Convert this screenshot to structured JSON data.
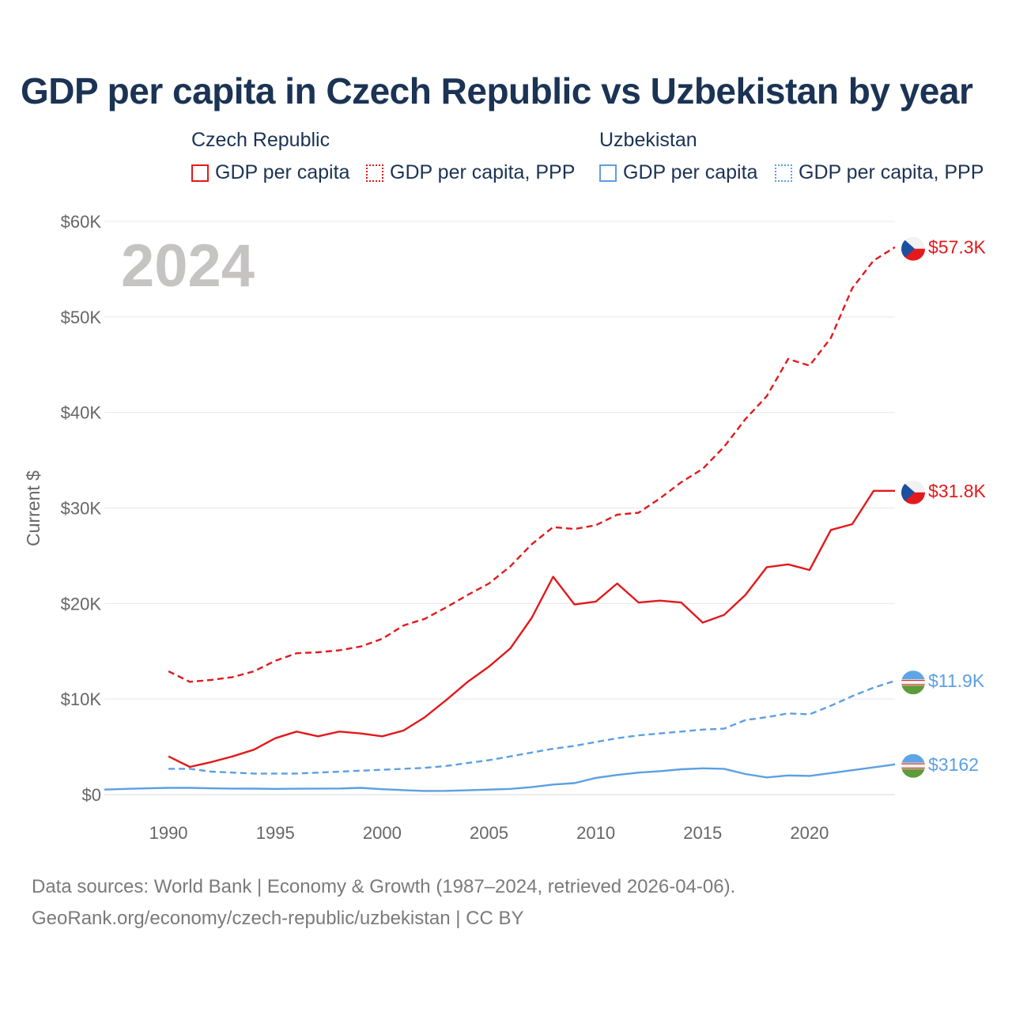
{
  "chart_data": {
    "type": "line",
    "title": "GDP per capita in Czech Republic vs Uzbekistan by year",
    "ylabel": "Current $",
    "xlabel": "",
    "xlim": [
      1987,
      2024
    ],
    "ylim": [
      0,
      60000
    ],
    "x_ticks": [
      1990,
      1995,
      2000,
      2005,
      2010,
      2015,
      2020
    ],
    "x_tick_labels": [
      "1990",
      "1995",
      "2000",
      "2005",
      "2010",
      "2015",
      "2020"
    ],
    "y_ticks": [
      0,
      10000,
      20000,
      30000,
      40000,
      50000,
      60000
    ],
    "y_tick_labels": [
      "$0",
      "$10K",
      "$20K",
      "$30K",
      "$40K",
      "$50K",
      "$60K"
    ],
    "year_watermark": "2024",
    "legend": {
      "groups": [
        {
          "country": "Czech Republic",
          "items": [
            "GDP per capita",
            "GDP per capita, PPP"
          ]
        },
        {
          "country": "Uzbekistan",
          "items": [
            "GDP per capita",
            "GDP per capita, PPP"
          ]
        }
      ]
    },
    "series": [
      {
        "name": "Czech Republic GDP per capita, PPP",
        "country": "Czech Republic",
        "style": "dashed",
        "color": "#e3191c",
        "end_label": "$57.3K",
        "x": [
          1990,
          1991,
          1992,
          1993,
          1994,
          1995,
          1996,
          1997,
          1998,
          1999,
          2000,
          2001,
          2002,
          2003,
          2004,
          2005,
          2006,
          2007,
          2008,
          2009,
          2010,
          2011,
          2012,
          2013,
          2014,
          2015,
          2016,
          2017,
          2018,
          2019,
          2020,
          2021,
          2022,
          2023,
          2024
        ],
        "values": [
          12900,
          11800,
          12000,
          12300,
          12900,
          14000,
          14800,
          14900,
          15100,
          15500,
          16300,
          17700,
          18400,
          19600,
          20900,
          22100,
          23900,
          26200,
          28000,
          27800,
          28200,
          29300,
          29500,
          31000,
          32700,
          34100,
          36400,
          39300,
          41700,
          45600,
          44900,
          47800,
          53000,
          55900,
          57300
        ]
      },
      {
        "name": "Czech Republic GDP per capita",
        "country": "Czech Republic",
        "style": "solid",
        "color": "#e3191c",
        "end_label": "$31.8K",
        "x": [
          1990,
          1991,
          1992,
          1993,
          1994,
          1995,
          1996,
          1997,
          1998,
          1999,
          2000,
          2001,
          2002,
          2003,
          2004,
          2005,
          2006,
          2007,
          2008,
          2009,
          2010,
          2011,
          2012,
          2013,
          2014,
          2015,
          2016,
          2017,
          2018,
          2019,
          2020,
          2021,
          2022,
          2023,
          2024
        ],
        "values": [
          4000,
          2900,
          3400,
          4000,
          4700,
          5900,
          6600,
          6100,
          6600,
          6400,
          6100,
          6700,
          8100,
          9900,
          11800,
          13400,
          15300,
          18500,
          22800,
          19900,
          20200,
          22100,
          20100,
          20300,
          20100,
          18000,
          18800,
          20900,
          23800,
          24100,
          23500,
          27700,
          28300,
          31800,
          31800
        ]
      },
      {
        "name": "Uzbekistan GDP per capita, PPP",
        "country": "Uzbekistan",
        "style": "dashed",
        "color": "#5c9fe2",
        "end_label": "$11.9K",
        "x": [
          1990,
          1991,
          1992,
          1993,
          1994,
          1995,
          1996,
          1997,
          1998,
          1999,
          2000,
          2001,
          2002,
          2003,
          2004,
          2005,
          2006,
          2007,
          2008,
          2009,
          2010,
          2011,
          2012,
          2013,
          2014,
          2015,
          2016,
          2017,
          2018,
          2019,
          2020,
          2021,
          2022,
          2023,
          2024
        ],
        "values": [
          2700,
          2700,
          2400,
          2300,
          2200,
          2200,
          2200,
          2300,
          2400,
          2500,
          2600,
          2700,
          2800,
          3000,
          3300,
          3600,
          4000,
          4400,
          4800,
          5100,
          5500,
          5900,
          6200,
          6400,
          6600,
          6800,
          6900,
          7800,
          8100,
          8500,
          8400,
          9300,
          10300,
          11200,
          11900
        ]
      },
      {
        "name": "Uzbekistan GDP per capita",
        "country": "Uzbekistan",
        "style": "solid",
        "color": "#5c9fe2",
        "end_label": "$3162",
        "x": [
          1987,
          1988,
          1989,
          1990,
          1991,
          1992,
          1993,
          1994,
          1995,
          1996,
          1997,
          1998,
          1999,
          2000,
          2001,
          2002,
          2003,
          2004,
          2005,
          2006,
          2007,
          2008,
          2009,
          2010,
          2011,
          2012,
          2013,
          2014,
          2015,
          2016,
          2017,
          2018,
          2019,
          2020,
          2021,
          2022,
          2023,
          2024
        ],
        "values": [
          520,
          600,
          650,
          700,
          700,
          650,
          630,
          620,
          600,
          610,
          630,
          640,
          700,
          560,
          460,
          380,
          390,
          450,
          520,
          600,
          780,
          1050,
          1200,
          1750,
          2050,
          2300,
          2450,
          2650,
          2750,
          2700,
          2150,
          1800,
          2000,
          1950,
          2250,
          2550,
          2850,
          3162
        ]
      }
    ]
  },
  "footer": {
    "line1": "Data sources: World Bank | Economy & Growth (1987–2024, retrieved 2026-04-06).",
    "line2": "GeoRank.org/economy/czech-republic/uzbekistan | CC BY"
  }
}
